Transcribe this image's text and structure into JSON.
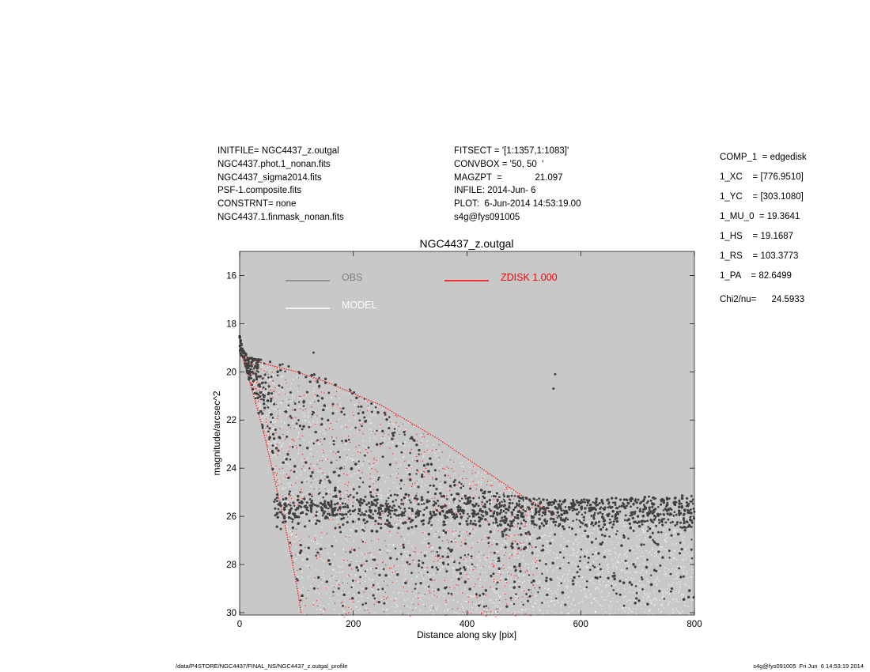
{
  "header_left": [
    "INITFILE= NGC4437_z.outgal",
    "NGC4437.phot.1_nonan.fits",
    "NGC4437_sigma2014.fits",
    "PSF-1.composite.fits",
    "CONSTRNT= none",
    "NGC4437.1.finmask_nonan.fits"
  ],
  "header_mid": [
    "FITSECT = '[1:1357,1:1083]'",
    "CONVBOX = '50, 50  '",
    "MAGZPT  =             21.097",
    "INFILE: 2014-Jun- 6",
    "PLOT:  6-Jun-2014 14:53:19.00",
    "s4g@fys091005"
  ],
  "params": [
    "COMP_1  = edgedisk",
    "1_XC    = [776.9510]",
    "1_YC    = [303.1080]",
    "1_MU_0  = 19.3641",
    "1_HS    = 19.1687",
    "1_RS    = 103.3773",
    "1_PA    = 82.6499"
  ],
  "chi2": "Chi2/nu=      24.5933",
  "footer_left": "/data/P4STORE/NGC4437/FINAL_NS/NGC4437_z.outgal_profile",
  "footer_right": "s4g@fys091005  Fri Jun  6 14:53:19 2014",
  "colors": {
    "plot_background": "#c8c8c8",
    "obs": "#404040",
    "model": "#ffffff",
    "component": "#ff0000",
    "obs_legend": "#808080"
  },
  "chart_data": {
    "type": "scatter",
    "title": "NGC4437_z.outgal",
    "xlabel": "Distance along sky [pix]",
    "ylabel": "magnitude/arcsec^2",
    "xlim": [
      0,
      800
    ],
    "ylim": [
      30,
      15
    ],
    "y_inverted": true,
    "xticks": [
      0,
      200,
      400,
      600,
      800
    ],
    "yticks": [
      16,
      18,
      20,
      22,
      24,
      26,
      28,
      30
    ],
    "grid": false,
    "legend": [
      {
        "name": "OBS",
        "color": "#808080"
      },
      {
        "name": "MODEL",
        "color": "#ffffff"
      },
      {
        "name": "ZDISK  1.000",
        "color": "#ff0000"
      }
    ],
    "model_envelope": {
      "upper_edge": [
        [
          5,
          19.4
        ],
        [
          50,
          19.7
        ],
        [
          100,
          20.0
        ],
        [
          150,
          20.4
        ],
        [
          200,
          20.9
        ],
        [
          250,
          21.4
        ],
        [
          300,
          22.1
        ],
        [
          350,
          22.8
        ],
        [
          400,
          23.6
        ],
        [
          450,
          24.4
        ],
        [
          500,
          25.2
        ],
        [
          560,
          26.0
        ]
      ],
      "lower_edge": [
        [
          5,
          19.4
        ],
        [
          20,
          20.6
        ],
        [
          40,
          22.3
        ],
        [
          60,
          24.3
        ],
        [
          80,
          26.4
        ],
        [
          100,
          28.8
        ],
        [
          108,
          30.0
        ]
      ]
    },
    "obs_cloud": {
      "upper_edge": [
        [
          0,
          18.5
        ],
        [
          5,
          19.0
        ],
        [
          15,
          19.4
        ],
        [
          60,
          19.6
        ],
        [
          100,
          19.8
        ],
        [
          150,
          20.2
        ],
        [
          200,
          20.8
        ],
        [
          250,
          21.6
        ],
        [
          300,
          22.6
        ],
        [
          350,
          24.0
        ],
        [
          400,
          24.8
        ],
        [
          500,
          25.2
        ],
        [
          600,
          25.3
        ],
        [
          700,
          25.2
        ],
        [
          800,
          25.1
        ]
      ],
      "band_center": [
        [
          150,
          25.7
        ],
        [
          300,
          25.8
        ],
        [
          500,
          25.8
        ],
        [
          800,
          25.8
        ]
      ],
      "band_width": 1.2,
      "outliers": [
        [
          130,
          19.2
        ],
        [
          555,
          20.1
        ],
        [
          552,
          20.7
        ]
      ]
    }
  }
}
